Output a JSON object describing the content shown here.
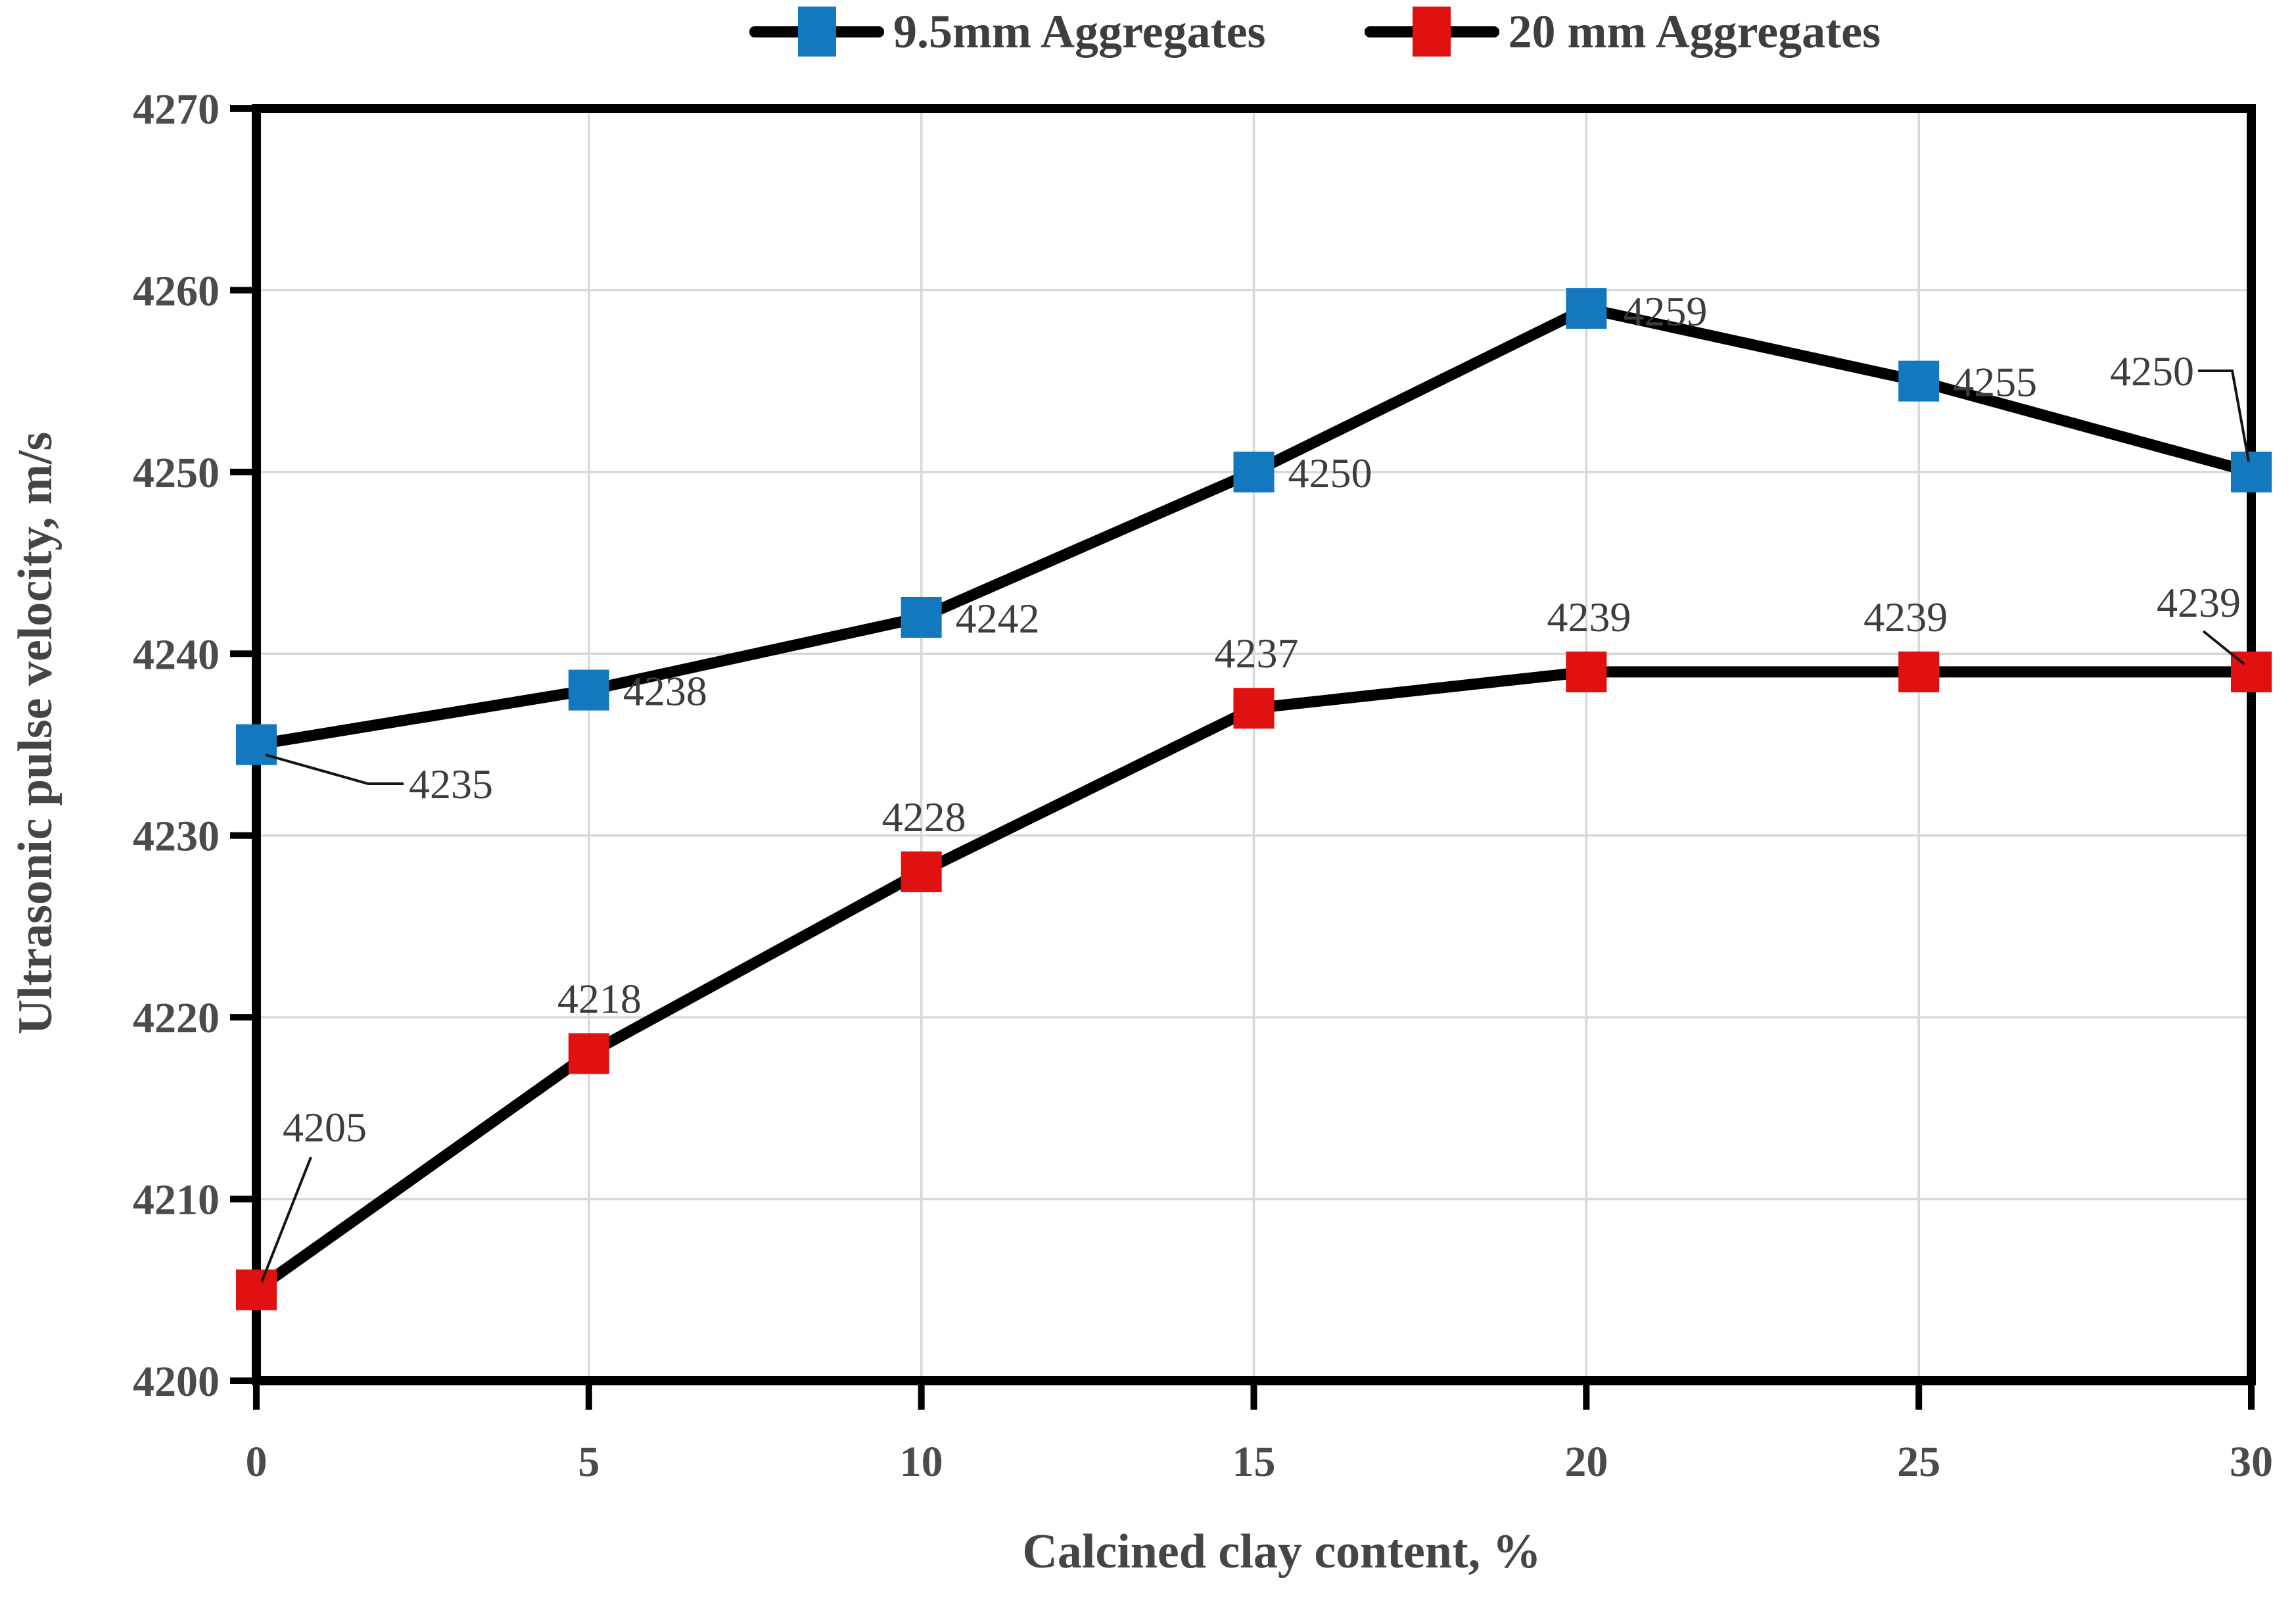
{
  "chart_data": {
    "type": "line",
    "title": "",
    "x_label": "Calcined clay content, %",
    "y_label": "Ultrasonic pulse velocity, m/s",
    "x": [
      0,
      5,
      10,
      15,
      20,
      25,
      30
    ],
    "x_ticks": [
      "0",
      "5",
      "10",
      "15",
      "20",
      "25",
      "30"
    ],
    "y_ticks": [
      "4200",
      "4210",
      "4220",
      "4230",
      "4240",
      "4250",
      "4260",
      "4270"
    ],
    "xlim": [
      0,
      30
    ],
    "ylim": [
      4200,
      4270
    ],
    "grid": true,
    "legend_position": "top-center",
    "line_color": "#000000",
    "grid_color": "#D8D8D8",
    "tick_label_color": "#4B4B4B",
    "data_label_color": "#3D3D3D",
    "series": [
      {
        "name": "9.5mm Aggregates",
        "marker": "square",
        "marker_color": "#1478BE",
        "values": [
          4235,
          4238,
          4242,
          4250,
          4259,
          4255,
          4250
        ],
        "point_labels": [
          "4235",
          "4238",
          "4242",
          "4250",
          "4259",
          "4255",
          "4250"
        ]
      },
      {
        "name": "20 mm Aggregates",
        "marker": "square",
        "marker_color": "#E01110",
        "values": [
          4205,
          4218,
          4228,
          4237,
          4239,
          4239,
          4239
        ],
        "point_labels": [
          "4205",
          "4218",
          "4228",
          "4237",
          "4239",
          "4239",
          "4239"
        ]
      }
    ]
  }
}
